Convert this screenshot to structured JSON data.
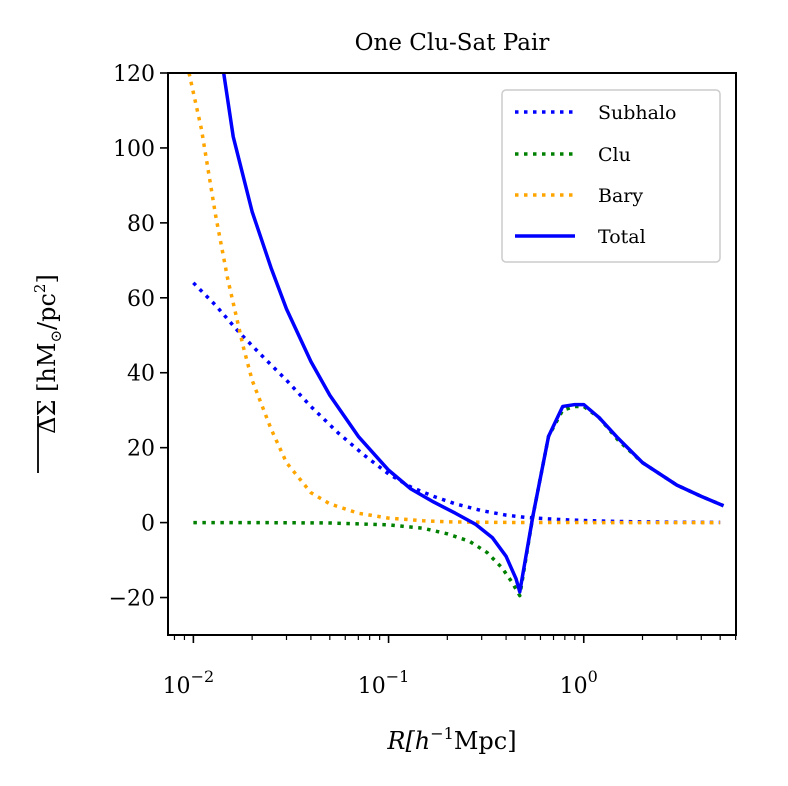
{
  "chart_data": {
    "type": "line",
    "title": "One Clu-Sat Pair",
    "xlabel_prefix": "R[h",
    "xlabel_exp": "−1",
    "xlabel_suffix": "Mpc]",
    "ylabel_main": "ΔΣ [hM",
    "ylabel_sun": "⊙",
    "ylabel_mid": "/pc",
    "ylabel_exp": "2",
    "ylabel_end": "]",
    "xscale": "log",
    "xlim_log10": [
      -2.13,
      0.78
    ],
    "ylim": [
      -30,
      120
    ],
    "y_ticks": [
      -20,
      0,
      20,
      40,
      60,
      80,
      100,
      120
    ],
    "y_tick_labels": [
      "−20",
      "0",
      "20",
      "40",
      "60",
      "80",
      "100",
      "120"
    ],
    "x_major_ticks_log10": [
      -2,
      -1,
      0
    ],
    "x_tick_base": [
      "10",
      "10",
      "10"
    ],
    "x_tick_exps": [
      "−2",
      "−1",
      "0"
    ],
    "legend_position": "upper right",
    "series": [
      {
        "name": "Subhalo",
        "style": "dotted",
        "color": "#0000ff",
        "points": [
          [
            0.01,
            64
          ],
          [
            0.013,
            58
          ],
          [
            0.017,
            51
          ],
          [
            0.022,
            45
          ],
          [
            0.03,
            38
          ],
          [
            0.04,
            31
          ],
          [
            0.055,
            24
          ],
          [
            0.075,
            18
          ],
          [
            0.1,
            13
          ],
          [
            0.13,
            9.5
          ],
          [
            0.17,
            7
          ],
          [
            0.22,
            5
          ],
          [
            0.3,
            3.2
          ],
          [
            0.4,
            2
          ],
          [
            0.5,
            1.4
          ],
          [
            0.65,
            1
          ],
          [
            0.85,
            0.7
          ],
          [
            1.1,
            0.5
          ],
          [
            1.5,
            0.3
          ],
          [
            2.0,
            0.2
          ],
          [
            3.0,
            0.1
          ],
          [
            5.0,
            0.05
          ]
        ]
      },
      {
        "name": "Clu",
        "style": "dotted",
        "color": "#008000",
        "points": [
          [
            0.01,
            0
          ],
          [
            0.02,
            0
          ],
          [
            0.05,
            -0.1
          ],
          [
            0.1,
            -0.6
          ],
          [
            0.15,
            -1.5
          ],
          [
            0.2,
            -3
          ],
          [
            0.26,
            -5
          ],
          [
            0.32,
            -8
          ],
          [
            0.38,
            -12
          ],
          [
            0.43,
            -16
          ],
          [
            0.47,
            -19.5
          ],
          [
            0.55,
            2
          ],
          [
            0.66,
            23
          ],
          [
            0.78,
            30
          ],
          [
            0.9,
            31
          ],
          [
            1.0,
            31
          ],
          [
            1.2,
            28
          ],
          [
            1.5,
            22
          ],
          [
            2.0,
            16
          ],
          [
            3.0,
            10
          ],
          [
            4.0,
            7
          ],
          [
            5.2,
            4.5
          ]
        ]
      },
      {
        "name": "Bary",
        "style": "dotted",
        "color": "#ffa500",
        "points": [
          [
            0.0095,
            120
          ],
          [
            0.011,
            105
          ],
          [
            0.013,
            82
          ],
          [
            0.015,
            65
          ],
          [
            0.018,
            47
          ],
          [
            0.02,
            38
          ],
          [
            0.025,
            25
          ],
          [
            0.03,
            16
          ],
          [
            0.04,
            8
          ],
          [
            0.05,
            5
          ],
          [
            0.07,
            2.5
          ],
          [
            0.1,
            1.2
          ],
          [
            0.15,
            0.5
          ],
          [
            0.2,
            0.2
          ],
          [
            0.3,
            0.1
          ],
          [
            0.5,
            0.02
          ],
          [
            1,
            0.01
          ],
          [
            2,
            0
          ],
          [
            5,
            0
          ]
        ]
      },
      {
        "name": "Total",
        "style": "solid",
        "color": "#0000ff",
        "points": [
          [
            0.0143,
            120
          ],
          [
            0.016,
            103
          ],
          [
            0.02,
            83
          ],
          [
            0.025,
            68
          ],
          [
            0.03,
            57
          ],
          [
            0.04,
            43
          ],
          [
            0.05,
            34
          ],
          [
            0.07,
            23
          ],
          [
            0.1,
            14
          ],
          [
            0.13,
            9
          ],
          [
            0.17,
            5.5
          ],
          [
            0.22,
            2.5
          ],
          [
            0.28,
            -0.5
          ],
          [
            0.34,
            -4
          ],
          [
            0.4,
            -9
          ],
          [
            0.45,
            -15
          ],
          [
            0.47,
            -18.5
          ],
          [
            0.55,
            2
          ],
          [
            0.66,
            23
          ],
          [
            0.78,
            31
          ],
          [
            0.9,
            31.5
          ],
          [
            1.0,
            31.5
          ],
          [
            1.2,
            28
          ],
          [
            1.5,
            22.5
          ],
          [
            2.0,
            16
          ],
          [
            3.0,
            10
          ],
          [
            4.0,
            7
          ],
          [
            5.2,
            4.5
          ]
        ]
      }
    ]
  }
}
